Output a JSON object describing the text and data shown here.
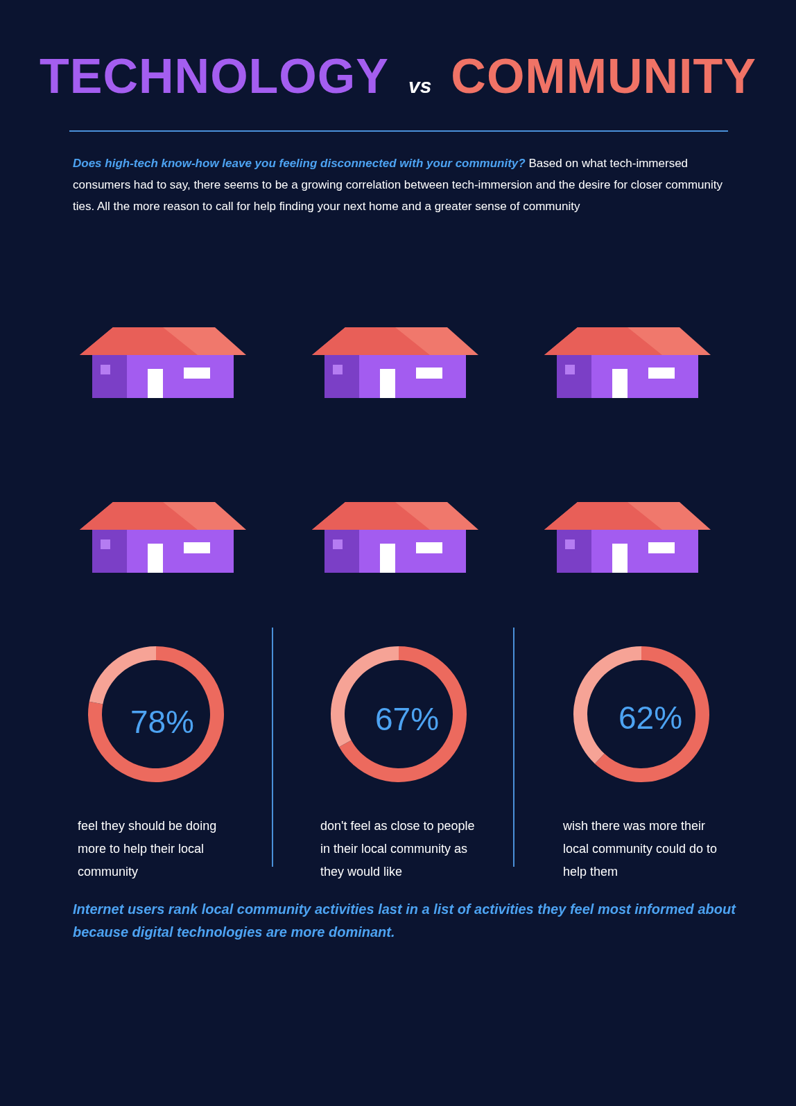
{
  "chart_data": [
    {
      "type": "other",
      "title": "TECHNOLOGY vs COMMUNITY",
      "subtitle": "Does high-tech know-how leave you feeling disconnected with your community? Based on what tech-immersed consumers had to say, there seems to be a growing correlation between tech-immersion and the desire for closer community ties. All the more reason to call for help finding your next home and a greater sense of community",
      "annotations": [
        "Internet users rank local community activities last in a list of activities they feel most informed about because digital technologies are more dominant."
      ]
    },
    {
      "type": "donut",
      "categories": [
        null,
        null
      ],
      "values": [
        78,
        22
      ],
      "colors": [
        "#ec6a5e",
        "#f6a396"
      ],
      "value_labels": [
        "78%",
        null
      ],
      "annotations": [
        "feel they should be doing more to help their local community"
      ]
    },
    {
      "type": "donut",
      "categories": [
        null,
        null
      ],
      "values": [
        67,
        33
      ],
      "colors": [
        "#ec6a5e",
        "#f6a396"
      ],
      "value_labels": [
        "67%",
        null
      ],
      "annotations": [
        "don't feel as close to people in their local community as they would like"
      ]
    },
    {
      "type": "donut",
      "categories": [
        null,
        null
      ],
      "values": [
        62,
        38
      ],
      "colors": [
        "#ec6a5e",
        "#f6a396"
      ],
      "value_labels": [
        "62%",
        null
      ],
      "annotations": [
        "wish there was more their local community could do to help them"
      ]
    }
  ]
}
